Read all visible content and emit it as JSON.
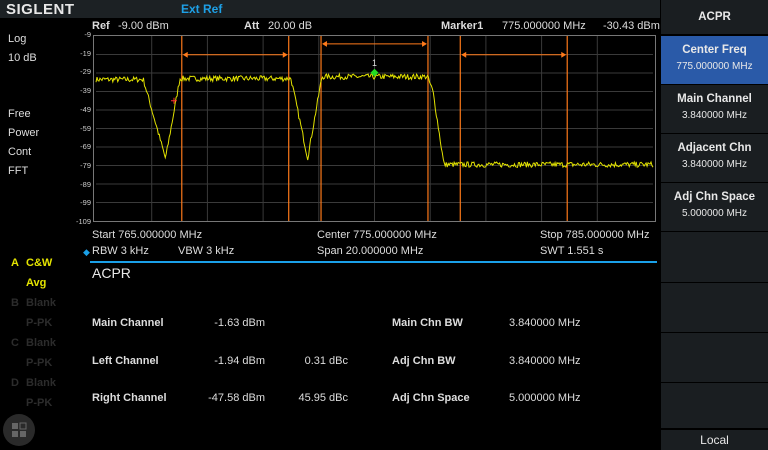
{
  "header": {
    "brand": "SIGLENT",
    "status": "Ext Ref"
  },
  "params": {
    "ref_label": "Ref",
    "ref_value": "-9.00 dBm",
    "att_label": "Att",
    "att_value": "20.00 dB",
    "marker_label": "Marker1",
    "marker_freq": "775.000000 MHz",
    "marker_level": "-30.43 dBm",
    "marker_number": "1"
  },
  "left": {
    "scale": "Log",
    "div": "10 dB",
    "free": "Free",
    "power": "Power",
    "cont": "Cont",
    "fft": "FFT"
  },
  "y_ticks": [
    "-9",
    "-19",
    "-29",
    "-39",
    "-49",
    "-59",
    "-69",
    "-79",
    "-89",
    "-99",
    "-109"
  ],
  "footer": {
    "start": "Start  765.000000 MHz",
    "center": "Center  775.000000 MHz",
    "stop": "Stop  785.000000 MHz",
    "rbw": "RBW 3 kHz",
    "vbw": "VBW 3 kHz",
    "span": "Span     20.000000 MHz",
    "swt": "SWT  1.551 s"
  },
  "traces": [
    {
      "letter": "A",
      "mode": "C&W",
      "det": "Avg",
      "color": "#e4e400"
    },
    {
      "letter": "B",
      "mode": "Blank",
      "det": "P-PK"
    },
    {
      "letter": "C",
      "mode": "Blank",
      "det": "P-PK"
    },
    {
      "letter": "D",
      "mode": "Blank",
      "det": "P-PK"
    }
  ],
  "acpr": {
    "title": "ACPR",
    "rows": [
      {
        "label": "Main Channel",
        "power": "-1.63 dBm",
        "rel": "",
        "param": "Main Chn BW",
        "param_value": "3.840000 MHz"
      },
      {
        "label": "Left Channel",
        "power": "-1.94 dBm",
        "rel": "0.31 dBc",
        "param": "Adj Chn BW",
        "param_value": "3.840000 MHz"
      },
      {
        "label": "Right Channel",
        "power": "-47.58 dBm",
        "rel": "45.95 dBc",
        "param": "Adj Chn Space",
        "param_value": "5.000000 MHz"
      }
    ]
  },
  "menu": {
    "title": "ACPR",
    "items": [
      {
        "label": "Center Freq",
        "value": "775.000000 MHz",
        "active": true
      },
      {
        "label": "Main Channel",
        "value": "3.840000 MHz"
      },
      {
        "label": "Adjacent Chn",
        "value": "3.840000 MHz"
      },
      {
        "label": "Adj Chn Space",
        "value": "5.000000 MHz"
      }
    ],
    "local": "Local"
  },
  "colors": {
    "trace": "#e4e400",
    "channel_line": "#ff7a1a",
    "accent": "#1aa0e8",
    "active_menu": "#2a5aa8",
    "marker": "#22dd22"
  },
  "spectrum": {
    "start_mhz": 765,
    "stop_mhz": 785,
    "ref_dbm": -9,
    "div_db": 10,
    "marker_mhz": 775,
    "marker_dbm": -30.43,
    "main_center_mhz": 775,
    "channel_bw_mhz": 3.84,
    "adj_space_mhz": 5
  }
}
